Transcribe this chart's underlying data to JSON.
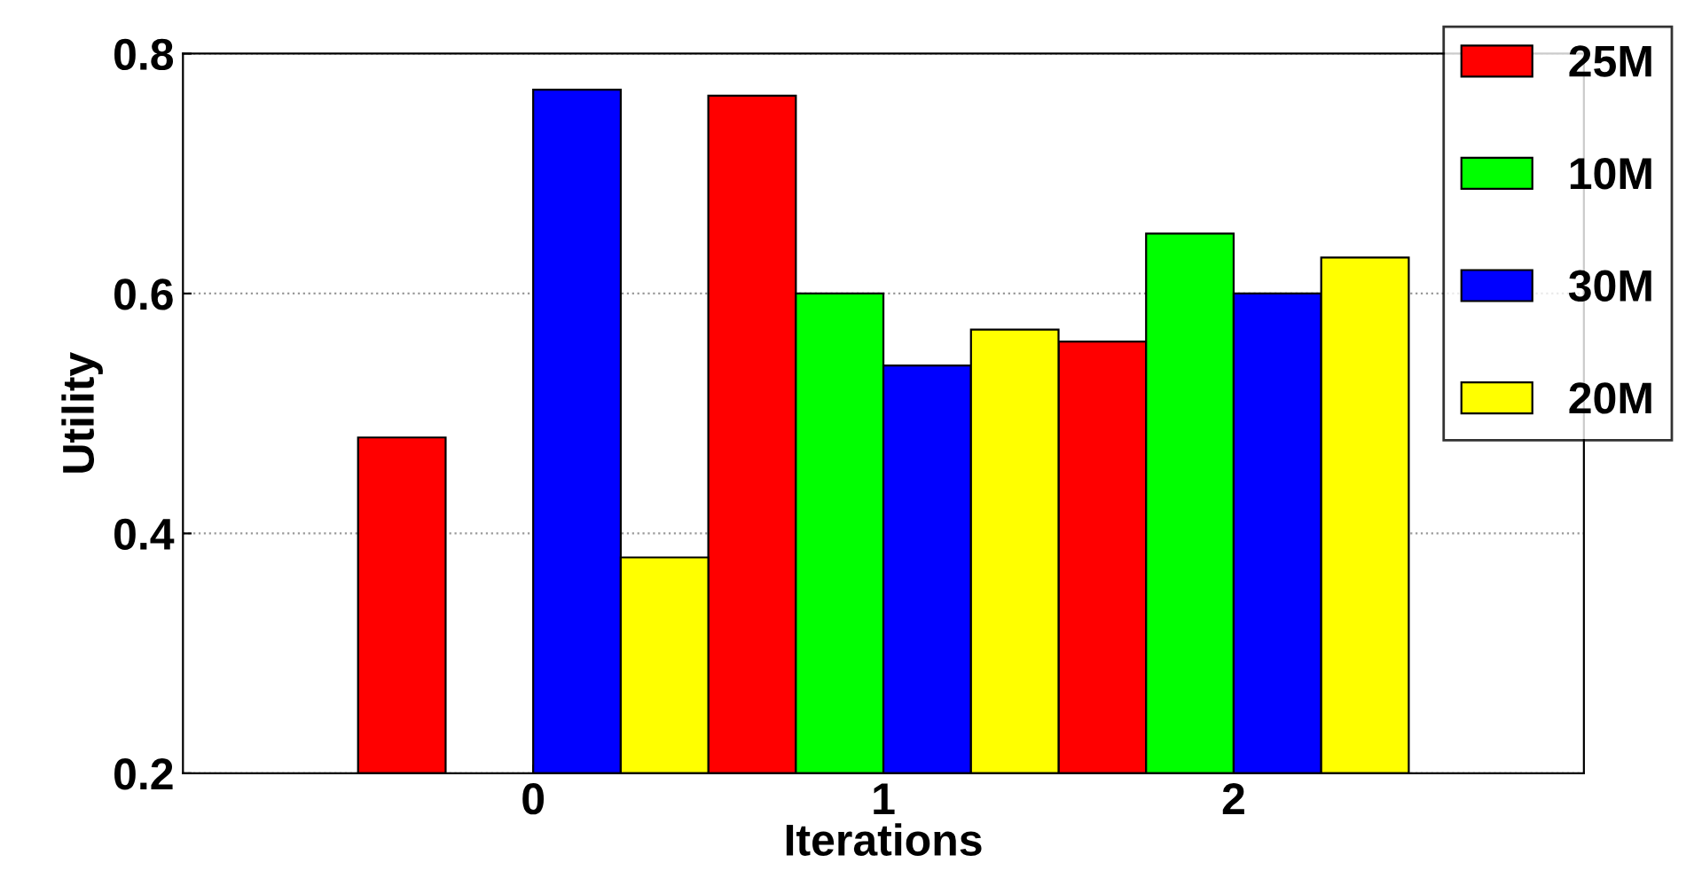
{
  "chart_data": {
    "type": "bar",
    "xlabel": "Iterations",
    "ylabel": "Utility",
    "x": [
      0,
      1,
      2
    ],
    "xlim": [
      -1,
      3
    ],
    "xticks": [
      0,
      1,
      2
    ],
    "ylim": [
      0.2,
      0.8
    ],
    "yticks": [
      0.2,
      0.4,
      0.6,
      0.8
    ],
    "grid": "y",
    "legend": "top right",
    "series": [
      {
        "name": "25M",
        "color": "#ff0000",
        "values": [
          0.48,
          0.765,
          0.56
        ]
      },
      {
        "name": "10M",
        "color": "#00ff00",
        "values": [
          null,
          0.6,
          0.65
        ]
      },
      {
        "name": "30M",
        "color": "#0000ff",
        "values": [
          0.77,
          0.54,
          0.6
        ]
      },
      {
        "name": "20M",
        "color": "#ffff00",
        "values": [
          0.38,
          0.57,
          0.63
        ]
      }
    ]
  }
}
